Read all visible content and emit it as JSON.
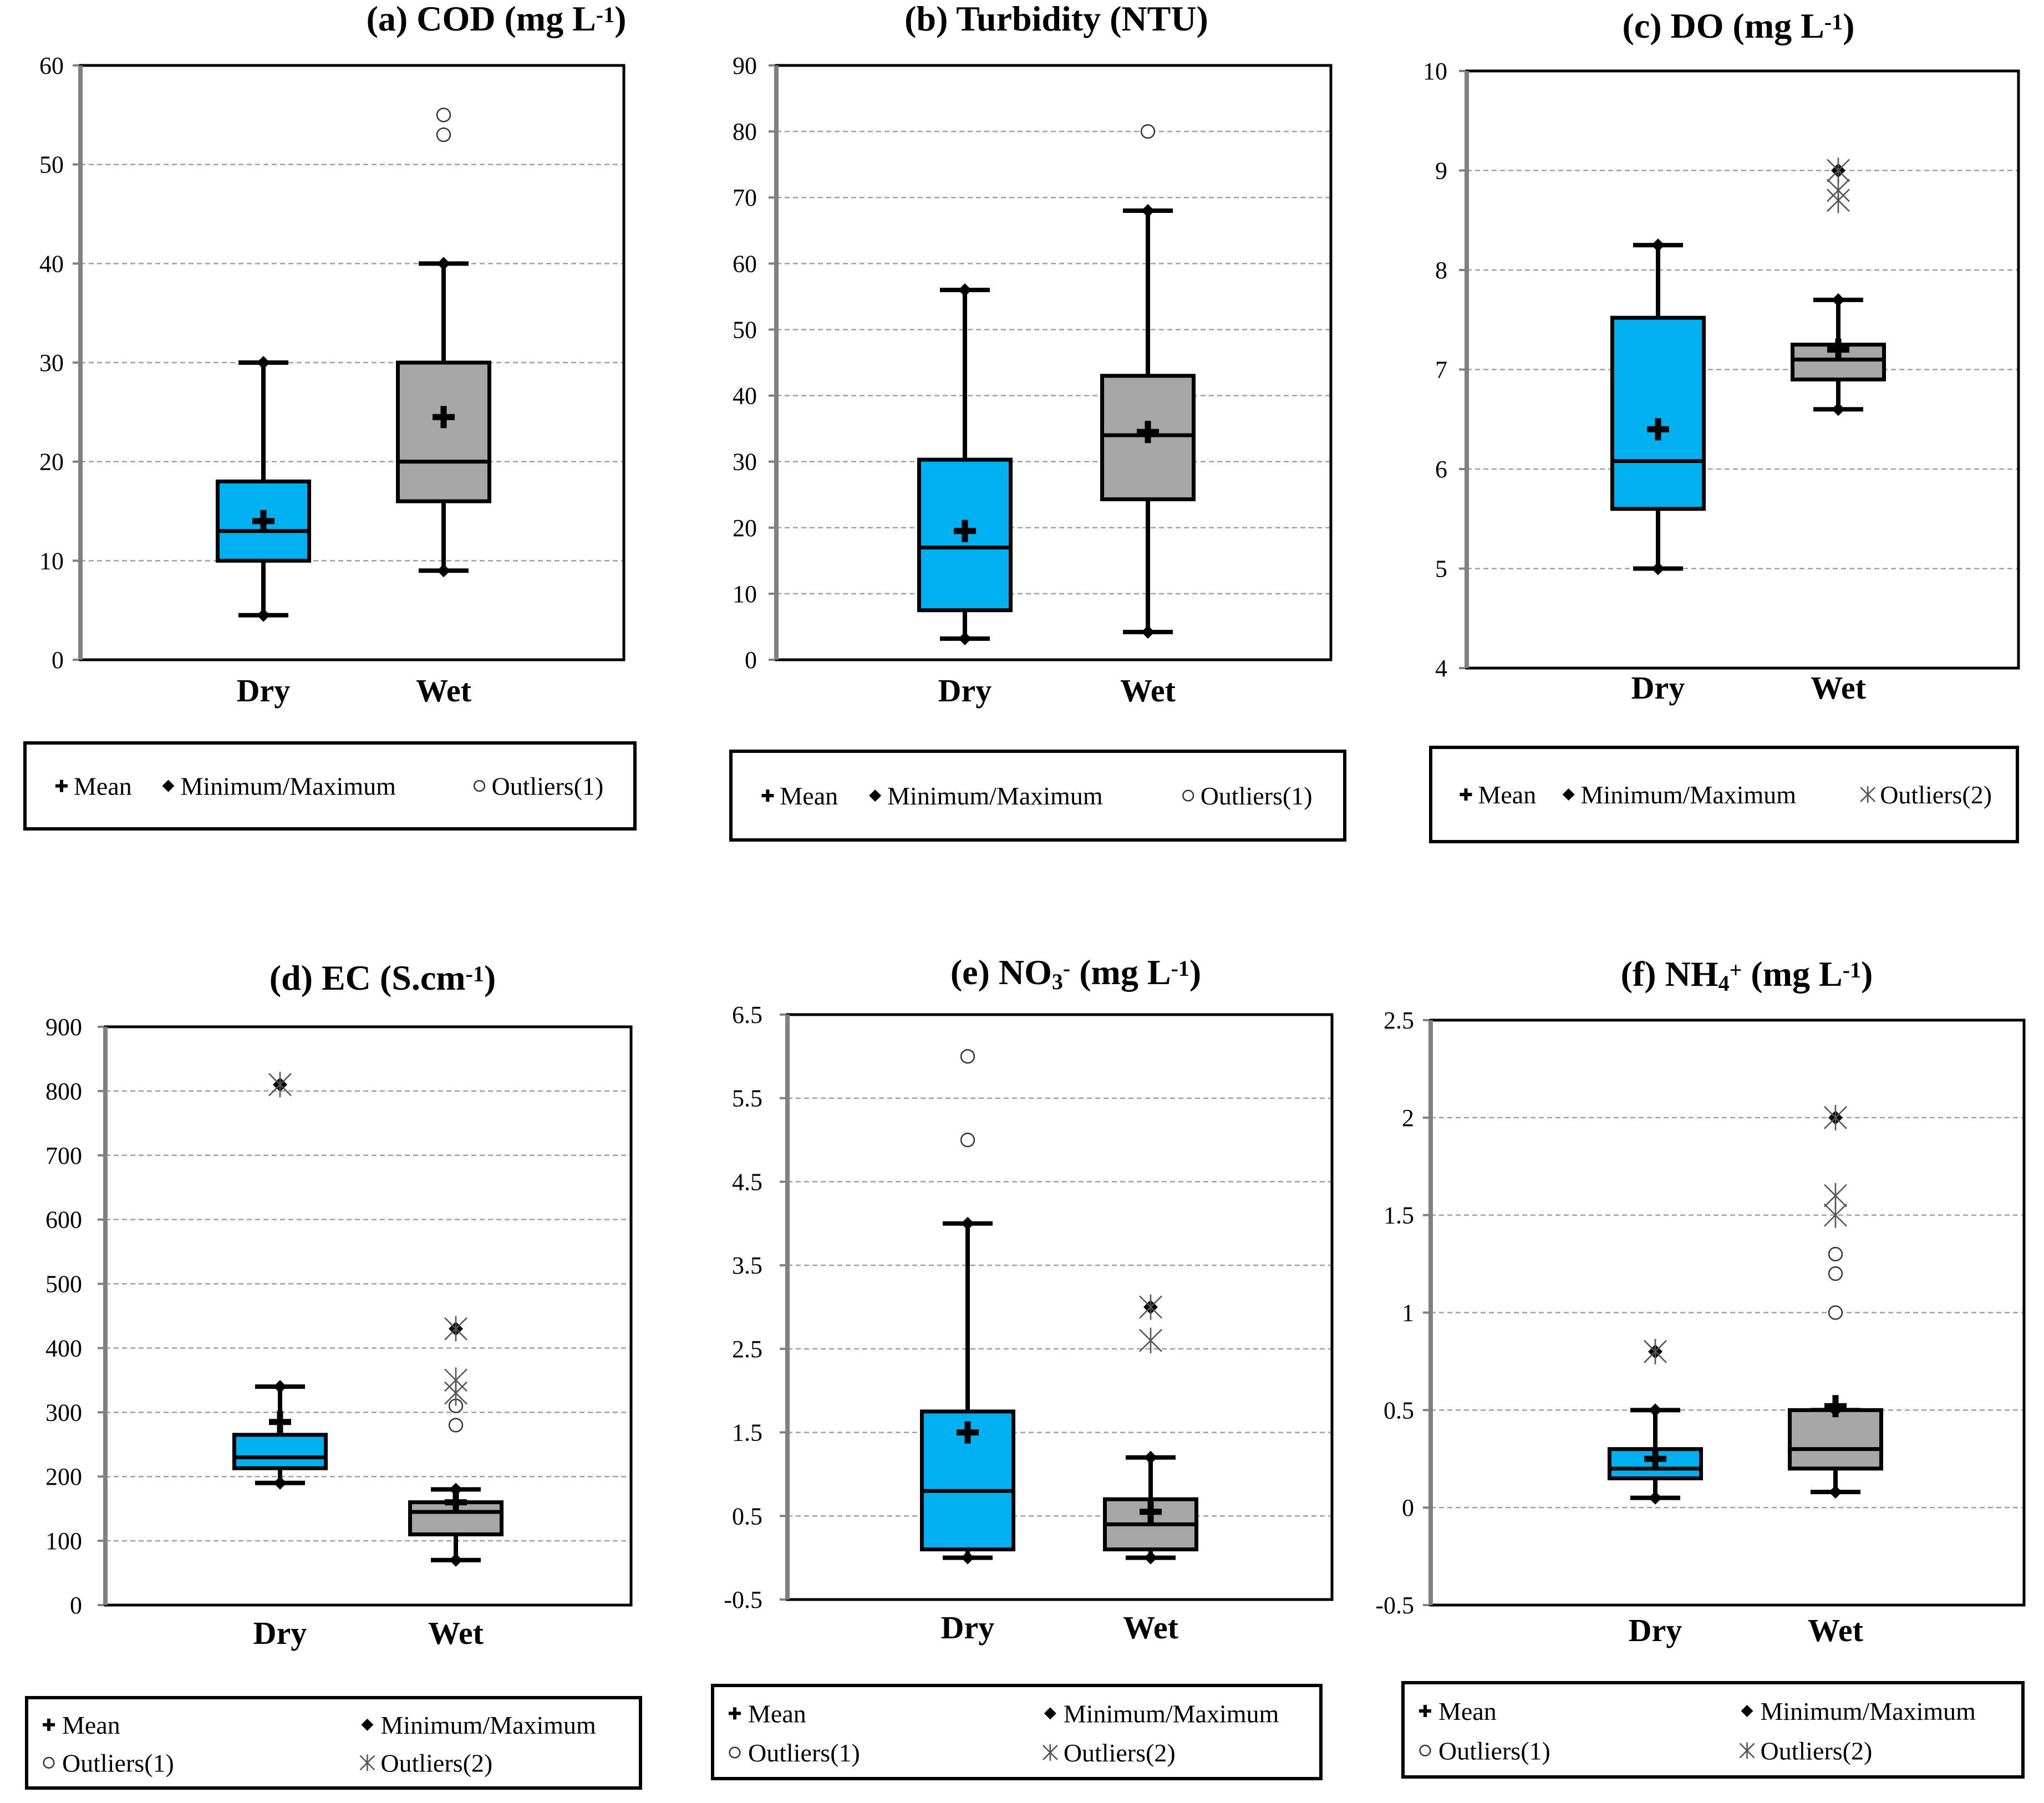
{
  "figure": {
    "colors": {
      "dry_fill": "#00B0F0",
      "wet_fill": "#A6A6A6",
      "stroke": "#000000",
      "grid": "#A0A0A0",
      "axis": "#808080"
    },
    "categories": [
      "Dry",
      "Wet"
    ]
  },
  "chart_data": [
    {
      "type": "box",
      "panel": "a",
      "title_parts": [
        {
          "t": "(a) COD (mg L"
        },
        {
          "t": "-1",
          "sup": true
        },
        {
          "t": ")"
        }
      ],
      "ylim": [
        0,
        60
      ],
      "yticks": [
        0,
        10,
        20,
        30,
        40,
        50,
        60
      ],
      "categories": [
        "Dry",
        "Wet"
      ],
      "series": [
        {
          "name": "Dry",
          "min": 4.5,
          "q1": 10,
          "median": 13,
          "q3": 18,
          "max": 30,
          "mean": 14,
          "outliers1": [],
          "outliers2": []
        },
        {
          "name": "Wet",
          "min": 9,
          "q1": 16,
          "median": 20,
          "q3": 30,
          "max": 40,
          "mean": 24.5,
          "extreme_max": 55,
          "outliers1": [
            53,
            55
          ],
          "outliers2": []
        }
      ],
      "legend": {
        "layout": "row",
        "items": [
          {
            "symbol": "plus",
            "label": "Mean"
          },
          {
            "symbol": "diamond",
            "label": "Minimum/Maximum"
          },
          {
            "symbol": "circle",
            "label": "Outliers(1)"
          }
        ]
      }
    },
    {
      "type": "box",
      "panel": "b",
      "title_parts": [
        {
          "t": "(b) Turbidity (NTU)"
        }
      ],
      "ylim": [
        0,
        90
      ],
      "yticks": [
        0,
        10,
        20,
        30,
        40,
        50,
        60,
        70,
        80,
        90
      ],
      "categories": [
        "Dry",
        "Wet"
      ],
      "series": [
        {
          "name": "Dry",
          "min": 3.2,
          "q1": 7.5,
          "median": 17,
          "q3": 30.3,
          "max": 56,
          "mean": 19.5,
          "outliers1": [],
          "outliers2": []
        },
        {
          "name": "Wet",
          "min": 4.2,
          "q1": 24.3,
          "median": 34,
          "q3": 43,
          "max": 68,
          "mean": 34.5,
          "extreme_max": 80,
          "outliers1": [
            80
          ],
          "outliers2": []
        }
      ],
      "legend": {
        "layout": "row",
        "items": [
          {
            "symbol": "plus",
            "label": "Mean"
          },
          {
            "symbol": "diamond",
            "label": "Minimum/Maximum"
          },
          {
            "symbol": "circle",
            "label": "Outliers(1)"
          }
        ]
      }
    },
    {
      "type": "box",
      "panel": "c",
      "title_parts": [
        {
          "t": "(c) DO (mg L"
        },
        {
          "t": "-1",
          "sup": true
        },
        {
          "t": ")"
        }
      ],
      "ylim": [
        4,
        10
      ],
      "yticks": [
        4,
        5,
        6,
        7,
        8,
        9,
        10
      ],
      "categories": [
        "Dry",
        "Wet"
      ],
      "series": [
        {
          "name": "Dry",
          "min": 5,
          "q1": 5.6,
          "median": 6.08,
          "q3": 7.52,
          "max": 8.25,
          "mean": 6.4,
          "outliers1": [],
          "outliers2": []
        },
        {
          "name": "Wet",
          "min": 6.6,
          "q1": 6.9,
          "median": 7.1,
          "q3": 7.25,
          "max": 7.7,
          "mean": 7.2,
          "extreme_max": 9,
          "outliers1": [],
          "outliers2": [
            8.7,
            8.8,
            9
          ]
        }
      ],
      "legend": {
        "layout": "row",
        "items": [
          {
            "symbol": "plus",
            "label": "Mean"
          },
          {
            "symbol": "diamond",
            "label": "Minimum/Maximum"
          },
          {
            "symbol": "star",
            "label": "Outliers(2)"
          }
        ]
      }
    },
    {
      "type": "box",
      "panel": "d",
      "title_parts": [
        {
          "t": "(d) EC (S.cm"
        },
        {
          "t": "-1",
          "sup": true
        },
        {
          "t": ")"
        }
      ],
      "ylim": [
        0,
        900
      ],
      "yticks": [
        0,
        100,
        200,
        300,
        400,
        500,
        600,
        700,
        800,
        900
      ],
      "categories": [
        "Dry",
        "Wet"
      ],
      "series": [
        {
          "name": "Dry",
          "min": 190,
          "q1": 213,
          "median": 230,
          "q3": 265,
          "max": 340,
          "mean": 285,
          "extreme_max": 810,
          "outliers1": [],
          "outliers2": [
            810
          ]
        },
        {
          "name": "Wet",
          "min": 70,
          "q1": 110,
          "median": 145,
          "q3": 160,
          "max": 180,
          "mean": 160,
          "extreme_max": 430,
          "outliers1": [
            280,
            310
          ],
          "outliers2": [
            330,
            350,
            430
          ]
        }
      ],
      "legend": {
        "layout": "grid",
        "items": [
          {
            "symbol": "plus",
            "label": "Mean"
          },
          {
            "symbol": "diamond",
            "label": "Minimum/Maximum"
          },
          {
            "symbol": "circle",
            "label": "Outliers(1)"
          },
          {
            "symbol": "star",
            "label": "Outliers(2)"
          }
        ]
      }
    },
    {
      "type": "box",
      "panel": "e",
      "title_parts": [
        {
          "t": "(e) NO"
        },
        {
          "t": "3",
          "sub": true
        },
        {
          "t": "-",
          "sup": true
        },
        {
          "t": " (mg L"
        },
        {
          "t": "-1",
          "sup": true
        },
        {
          "t": ")"
        }
      ],
      "ylim": [
        -0.5,
        6.5
      ],
      "yticks": [
        -0.5,
        0.5,
        1.5,
        2.5,
        3.5,
        4.5,
        5.5,
        6.5
      ],
      "categories": [
        "Dry",
        "Wet"
      ],
      "series": [
        {
          "name": "Dry",
          "min": 0,
          "q1": 0.1,
          "median": 0.8,
          "q3": 1.75,
          "max": 4,
          "mean": 1.5,
          "extreme_max": 6,
          "outliers1": [
            5,
            6
          ],
          "outliers2": []
        },
        {
          "name": "Wet",
          "min": 0,
          "q1": 0.1,
          "median": 0.4,
          "q3": 0.7,
          "max": 1.2,
          "mean": 0.55,
          "extreme_max": 3,
          "outliers1": [],
          "outliers2": [
            2.6,
            3
          ]
        }
      ],
      "legend": {
        "layout": "grid",
        "items": [
          {
            "symbol": "plus",
            "label": "Mean"
          },
          {
            "symbol": "diamond",
            "label": "Minimum/Maximum"
          },
          {
            "symbol": "circle",
            "label": "Outliers(1)"
          },
          {
            "symbol": "star",
            "label": "Outliers(2)"
          }
        ]
      }
    },
    {
      "type": "box",
      "panel": "f",
      "title_parts": [
        {
          "t": "(f) NH"
        },
        {
          "t": "4",
          "sub": true
        },
        {
          "t": "+",
          "sup": true
        },
        {
          "t": "  (mg L"
        },
        {
          "t": "-1",
          "sup": true
        },
        {
          "t": ")"
        }
      ],
      "ylim": [
        -0.5,
        2.5
      ],
      "yticks": [
        -0.5,
        0,
        0.5,
        1,
        1.5,
        2,
        2.5
      ],
      "categories": [
        "Dry",
        "Wet"
      ],
      "series": [
        {
          "name": "Dry",
          "min": 0.05,
          "q1": 0.15,
          "median": 0.2,
          "q3": 0.3,
          "max": 0.5,
          "mean": 0.25,
          "extreme_max": 0.8,
          "outliers1": [],
          "outliers2": [
            0.8
          ]
        },
        {
          "name": "Wet",
          "min": 0.08,
          "q1": 0.2,
          "median": 0.3,
          "q3": 0.5,
          "max": 0.5,
          "mean": 0.52,
          "extreme_max": 2,
          "outliers1": [
            1,
            1.2,
            1.3
          ],
          "outliers2": [
            1.5,
            1.6,
            2
          ]
        }
      ],
      "legend": {
        "layout": "grid",
        "items": [
          {
            "symbol": "plus",
            "label": "Mean"
          },
          {
            "symbol": "diamond",
            "label": "Minimum/Maximum"
          },
          {
            "symbol": "circle",
            "label": "Outliers(1)"
          },
          {
            "symbol": "star",
            "label": "Outliers(2)"
          }
        ]
      }
    }
  ]
}
